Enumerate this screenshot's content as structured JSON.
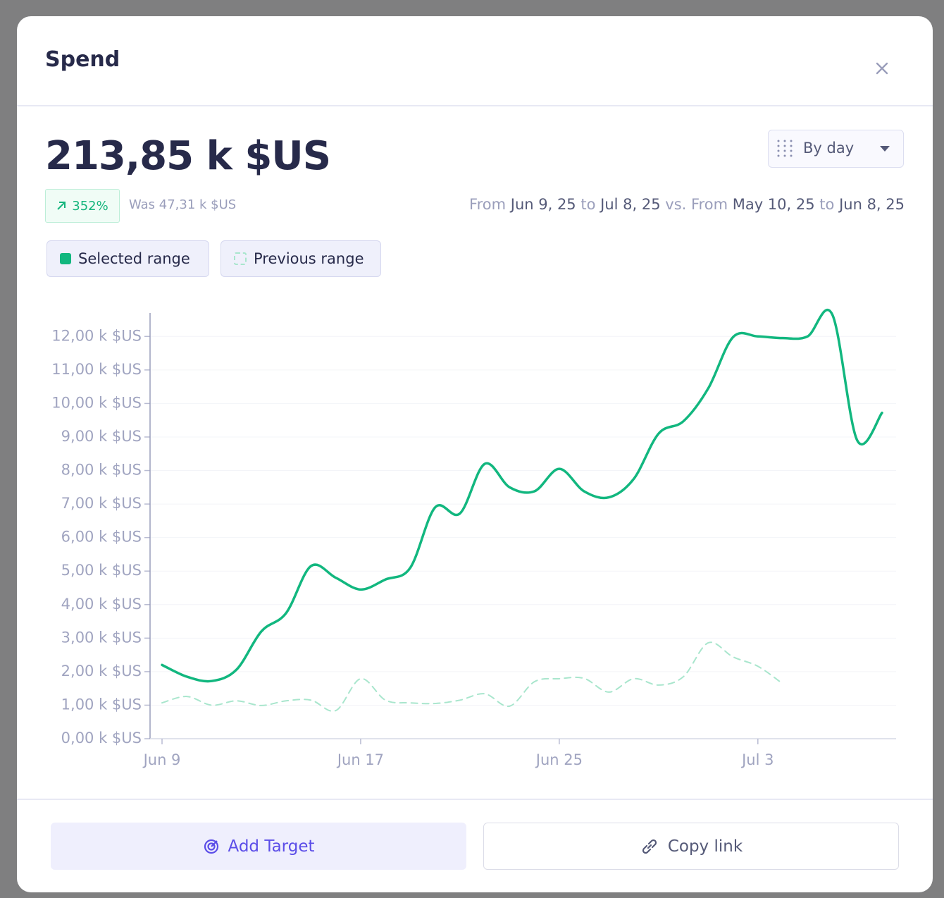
{
  "header": {
    "title": "Spend"
  },
  "summary": {
    "total": "213,85 k $US",
    "change": "352%",
    "previous": "Was 47,31 k $US"
  },
  "granularity": "By day",
  "range": {
    "from_label": "From",
    "start": "Jun 9, 25",
    "to_label": "to",
    "end": "Jul 8, 25",
    "vs_label": "vs. From",
    "prev_start": "May 10, 25",
    "prev_to_label": "to",
    "prev_end": "Jun 8, 25"
  },
  "chart_data": {
    "type": "line",
    "categories": [
      "Jun 9",
      null,
      null,
      null,
      null,
      null,
      null,
      null,
      "Jun 17",
      null,
      null,
      null,
      null,
      null,
      null,
      null,
      "Jun 25",
      null,
      null,
      null,
      null,
      null,
      null,
      null,
      "Jul 3",
      null,
      null,
      null,
      null,
      null
    ],
    "series": [
      {
        "name": "Selected range",
        "color": "#12b77f",
        "values": [
          2.2,
          1.85,
          1.72,
          2.06,
          3.2,
          3.75,
          5.15,
          4.8,
          4.45,
          4.75,
          5.1,
          6.9,
          6.72,
          8.2,
          7.5,
          7.38,
          8.05,
          7.38,
          7.2,
          7.75,
          9.1,
          9.47,
          10.45,
          11.98,
          12.0,
          11.95,
          12.0,
          12.65,
          8.9,
          9.72
        ]
      },
      {
        "name": "Previous range",
        "color": "#a9e6cd",
        "dashed": true,
        "values": [
          1.07,
          1.26,
          1.0,
          1.13,
          0.99,
          1.13,
          1.15,
          0.84,
          1.79,
          1.15,
          1.07,
          1.05,
          1.15,
          1.34,
          0.97,
          1.7,
          1.79,
          1.8,
          1.39,
          1.79,
          1.6,
          1.85,
          2.86,
          2.44,
          2.16,
          1.64,
          null,
          null,
          null,
          null
        ]
      }
    ],
    "ylim": [
      0,
      12.7
    ],
    "yticks": [
      {
        "value": 0,
        "label": "0,00 k $US"
      },
      {
        "value": 1,
        "label": "1,00 k $US"
      },
      {
        "value": 2,
        "label": "2,00 k $US"
      },
      {
        "value": 3,
        "label": "3,00 k $US"
      },
      {
        "value": 4,
        "label": "4,00 k $US"
      },
      {
        "value": 5,
        "label": "5,00 k $US"
      },
      {
        "value": 6,
        "label": "6,00 k $US"
      },
      {
        "value": 7,
        "label": "7,00 k $US"
      },
      {
        "value": 8,
        "label": "8,00 k $US"
      },
      {
        "value": 9,
        "label": "9,00 k $US"
      },
      {
        "value": 10,
        "label": "10,00 k $US"
      },
      {
        "value": 11,
        "label": "11,00 k $US"
      },
      {
        "value": 12,
        "label": "12,00 k $US"
      }
    ],
    "grid": true
  },
  "actions": [
    "Add Target",
    "Copy link"
  ]
}
